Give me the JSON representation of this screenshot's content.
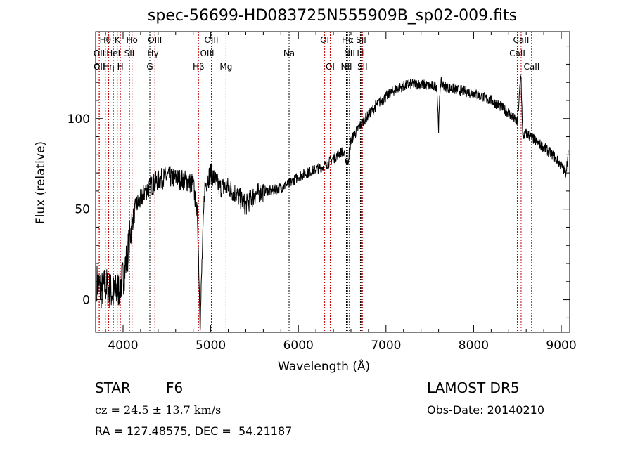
{
  "chart_data": {
    "type": "line",
    "title": "spec-56699-HD083725N555909B_sp02-009.fits",
    "xlabel": "Wavelength (Å)",
    "ylabel": "Flux (relative)",
    "xlim": [
      3687,
      9096
    ],
    "ylim": [
      -18,
      148
    ],
    "xticks": [
      4000,
      5000,
      6000,
      7000,
      8000,
      9000
    ],
    "yticks": [
      0,
      50,
      100
    ],
    "grid": false,
    "series": [
      {
        "name": "spectrum",
        "x": [
          3700,
          3750,
          3800,
          3850,
          3900,
          3950,
          4000,
          4050,
          4100,
          4150,
          4200,
          4250,
          4300,
          4350,
          4400,
          4450,
          4500,
          4600,
          4700,
          4800,
          4850,
          4880,
          4900,
          4930,
          4960,
          5000,
          5100,
          5200,
          5300,
          5400,
          5500,
          5600,
          5700,
          5800,
          5900,
          6000,
          6100,
          6200,
          6300,
          6400,
          6500,
          6563,
          6600,
          6700,
          6800,
          6900,
          7000,
          7100,
          7200,
          7300,
          7400,
          7500,
          7580,
          7600,
          7620,
          7700,
          7800,
          7900,
          8000,
          8100,
          8200,
          8300,
          8400,
          8500,
          8540,
          8560,
          8600,
          8700,
          8800,
          8900,
          9000,
          9050,
          9080
        ],
        "y": [
          10,
          5,
          8,
          5,
          3,
          6,
          12,
          25,
          42,
          52,
          55,
          60,
          62,
          64,
          66,
          67,
          68,
          67,
          66,
          64,
          45,
          -14,
          20,
          62,
          66,
          70,
          62,
          62,
          58,
          52,
          58,
          60,
          60,
          62,
          64,
          68,
          70,
          72,
          74,
          78,
          82,
          75,
          88,
          96,
          102,
          108,
          112,
          116,
          118,
          119,
          119,
          118,
          118,
          95,
          120,
          117,
          116,
          115,
          114,
          112,
          110,
          107,
          103,
          98,
          125,
          90,
          92,
          88,
          84,
          80,
          74,
          70,
          80
        ]
      }
    ],
    "lines": [
      {
        "label": "OII",
        "wl": 3727,
        "color": "#c00000",
        "row": 2
      },
      {
        "label": "OII",
        "wl": 3729,
        "color": "#c00000",
        "row": 3
      },
      {
        "label": "Hθ",
        "wl": 3798,
        "color": "#c00000",
        "row": 1
      },
      {
        "label": "Hη",
        "wl": 3836,
        "color": "#c00000",
        "row": 3
      },
      {
        "label": "HeI",
        "wl": 3889,
        "color": "#c00000",
        "row": 2
      },
      {
        "label": "K",
        "wl": 3934,
        "color": "#c00000",
        "row": 1
      },
      {
        "label": "H",
        "wl": 3969,
        "color": "#c00000",
        "row": 3
      },
      {
        "label": "SII",
        "wl": 4072,
        "color": "#000000",
        "row": 2
      },
      {
        "label": "Hδ",
        "wl": 4102,
        "color": "#c00000",
        "row": 1
      },
      {
        "label": "G",
        "wl": 4305,
        "color": "#000000",
        "row": 3
      },
      {
        "label": "Hγ",
        "wl": 4341,
        "color": "#c00000",
        "row": 2
      },
      {
        "label": "OIII",
        "wl": 4363,
        "color": "#c00000",
        "row": 1
      },
      {
        "label": "Hβ",
        "wl": 4861,
        "color": "#c00000",
        "row": 3
      },
      {
        "label": "OIII",
        "wl": 4959,
        "color": "#c00000",
        "row": 2
      },
      {
        "label": "OIII",
        "wl": 5007,
        "color": "#c00000",
        "row": 1
      },
      {
        "label": "Mg",
        "wl": 5175,
        "color": "#000000",
        "row": 3
      },
      {
        "label": "Na",
        "wl": 5894,
        "color": "#000000",
        "row": 2
      },
      {
        "label": "OI",
        "wl": 6300,
        "color": "#c00000",
        "row": 1
      },
      {
        "label": "OI",
        "wl": 6363,
        "color": "#c00000",
        "row": 3
      },
      {
        "label": "NII",
        "wl": 6548,
        "color": "#000000",
        "row": 3
      },
      {
        "label": "Hα",
        "wl": 6563,
        "color": "#c00000",
        "row": 1
      },
      {
        "label": "NII",
        "wl": 6583,
        "color": "#000000",
        "row": 2
      },
      {
        "label": "Li",
        "wl": 6708,
        "color": "#000000",
        "row": 2
      },
      {
        "label": "SII",
        "wl": 6716,
        "color": "#c00000",
        "row": 1
      },
      {
        "label": "SII",
        "wl": 6731,
        "color": "#c00000",
        "row": 3
      },
      {
        "label": "CaII",
        "wl": 8498,
        "color": "#c00000",
        "row": 2
      },
      {
        "label": "CaII",
        "wl": 8542,
        "color": "#c00000",
        "row": 1
      },
      {
        "label": "CaII",
        "wl": 8662,
        "color": "#000000",
        "row": 3
      }
    ]
  },
  "footer": {
    "object_class": "STAR",
    "subclass": "F6",
    "survey": "LAMOST DR5",
    "cz": "cz = 24.5 ± 13.7 km/s",
    "obs_date": "Obs-Date: 20140210",
    "coords": "RA = 127.48575, DEC =  54.21187"
  }
}
